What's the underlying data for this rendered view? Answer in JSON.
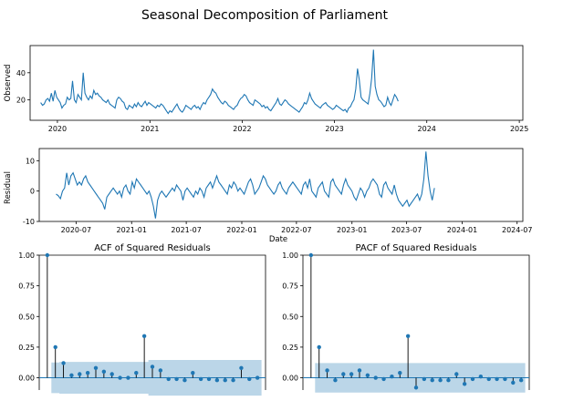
{
  "figure_title": "Seasonal Decomposition of Parliament",
  "colors": {
    "line": "#1f77b4",
    "band": "#1f77b4",
    "axis": "#000000"
  },
  "chart_data": [
    {
      "type": "line",
      "id": "observed",
      "ylabel": "Observed",
      "xlabel": "",
      "xlim": [
        "2019-09-15",
        "2025-01-15"
      ],
      "ylim": [
        5,
        60
      ],
      "x_ticks": [
        "2020",
        "2021",
        "2022",
        "2023",
        "2024",
        "2025"
      ],
      "x_tick_dates": [
        "2020-01-01",
        "2021-01-01",
        "2022-01-01",
        "2023-01-01",
        "2024-01-01",
        "2025-01-01"
      ],
      "y_ticks": [
        20,
        40
      ],
      "x_start": "2019-10-27",
      "step_days": 7,
      "values": [
        18,
        16,
        17,
        20,
        21,
        19,
        25,
        19,
        27,
        22,
        20,
        18,
        14,
        16,
        17,
        22,
        20,
        21,
        34,
        20,
        18,
        24,
        22,
        20,
        40,
        25,
        22,
        20,
        23,
        21,
        27,
        24,
        25,
        23,
        22,
        20,
        19,
        18,
        20,
        17,
        16,
        15,
        14,
        20,
        22,
        21,
        19,
        18,
        14,
        13,
        16,
        15,
        14,
        17,
        15,
        18,
        16,
        15,
        17,
        19,
        16,
        18,
        17,
        16,
        15,
        14,
        16,
        15,
        17,
        16,
        14,
        12,
        10,
        12,
        11,
        13,
        15,
        17,
        14,
        12,
        11,
        13,
        16,
        15,
        14,
        13,
        15,
        16,
        14,
        15,
        13,
        16,
        18,
        17,
        20,
        22,
        24,
        28,
        26,
        25,
        22,
        20,
        18,
        17,
        19,
        18,
        16,
        15,
        14,
        13,
        15,
        16,
        19,
        21,
        22,
        24,
        23,
        20,
        18,
        17,
        16,
        20,
        19,
        18,
        17,
        15,
        16,
        14,
        15,
        13,
        12,
        14,
        16,
        18,
        21,
        17,
        16,
        18,
        20,
        19,
        17,
        16,
        15,
        14,
        13,
        12,
        11,
        13,
        15,
        18,
        17,
        20,
        25,
        21,
        19,
        17,
        16,
        15,
        14,
        16,
        17,
        18,
        16,
        15,
        14,
        13,
        14,
        16,
        15,
        14,
        13,
        12,
        13,
        11,
        14,
        15,
        18,
        20,
        28,
        43,
        35,
        22,
        20,
        19,
        18,
        17,
        25,
        36,
        57,
        30,
        24,
        20,
        19,
        17,
        15,
        16,
        22,
        18,
        16,
        20,
        24,
        22,
        19
      ]
    },
    {
      "type": "line",
      "id": "residual",
      "ylabel": "Residual",
      "xlabel": "Date",
      "xlim": [
        "2020-03-01",
        "2024-07-20"
      ],
      "ylim": [
        -10,
        14
      ],
      "x_ticks": [
        "2020-07",
        "2021-01",
        "2021-07",
        "2022-01",
        "2022-07",
        "2023-01",
        "2023-07",
        "2024-01",
        "2024-07"
      ],
      "x_tick_dates": [
        "2020-07-01",
        "2021-01-01",
        "2021-07-01",
        "2022-01-01",
        "2022-07-01",
        "2023-01-01",
        "2023-07-01",
        "2024-01-01",
        "2024-07-01"
      ],
      "y_ticks": [
        -10,
        0,
        10
      ],
      "x_start": "2020-04-26",
      "step_days": 7,
      "values": [
        -1,
        -1.5,
        -2.5,
        0,
        1,
        6,
        2,
        5,
        6,
        4,
        2,
        3,
        2,
        4,
        5,
        3,
        2,
        1,
        0,
        -1,
        -2,
        -3,
        -4,
        -6,
        -2,
        -1,
        0,
        1,
        0,
        -1,
        0,
        -2,
        1,
        2,
        0,
        -1,
        3,
        1,
        4,
        3,
        2,
        1,
        0,
        -1,
        0,
        -2,
        -5,
        -9,
        -3,
        -1,
        0,
        -1,
        -2,
        -1,
        0,
        1,
        0,
        2,
        1,
        0,
        -3,
        0,
        1,
        0,
        -1,
        -2,
        0,
        -1,
        1,
        0,
        -2,
        1,
        2,
        3,
        1,
        3,
        5,
        3,
        2,
        1,
        0,
        -1,
        2,
        1,
        3,
        2,
        0,
        1,
        0,
        -1,
        1,
        3,
        4,
        2,
        -1,
        0,
        1,
        3,
        5,
        4,
        2,
        1,
        0,
        -1,
        0,
        2,
        3,
        1,
        0,
        -1,
        1,
        2,
        3,
        2,
        1,
        0,
        -1,
        2,
        3,
        1,
        4,
        0,
        -1,
        -2,
        1,
        2,
        3,
        0,
        -1,
        -2,
        3,
        4,
        2,
        1,
        0,
        -1,
        2,
        4,
        2,
        1,
        0,
        -2,
        -3,
        -1,
        1,
        0,
        -2,
        0,
        1,
        3,
        4,
        3,
        2,
        -1,
        -2,
        2,
        3,
        1,
        0,
        -1,
        2,
        -1,
        -3,
        -4,
        -5,
        -4,
        -3,
        -5,
        -4,
        -3,
        -2,
        -1,
        -3,
        -1,
        4,
        13,
        5,
        0,
        -3,
        1
      ]
    },
    {
      "type": "bar",
      "id": "acf",
      "title": "ACF of Squared Residuals",
      "ylim": [
        -0.1,
        1.0
      ],
      "y_ticks": [
        "0.00",
        "0.25",
        "0.50",
        "0.75",
        "1.00"
      ],
      "lags": [
        0,
        1,
        2,
        3,
        4,
        5,
        6,
        7,
        8,
        9,
        10,
        11,
        12,
        13,
        14,
        15,
        16,
        17,
        18,
        19,
        20,
        21,
        22,
        23,
        24,
        25,
        26
      ],
      "values": [
        1.0,
        0.25,
        0.12,
        0.02,
        0.03,
        0.04,
        0.08,
        0.05,
        0.03,
        0.0,
        0.0,
        0.04,
        0.34,
        0.09,
        0.06,
        -0.01,
        -0.01,
        -0.02,
        0.04,
        -0.01,
        -0.01,
        -0.02,
        -0.02,
        -0.02,
        0.08,
        -0.01,
        0.0
      ],
      "confint": [
        0,
        0.125,
        0.13,
        0.13,
        0.13,
        0.13,
        0.13,
        0.13,
        0.13,
        0.13,
        0.13,
        0.13,
        0.13,
        0.145,
        0.145,
        0.145,
        0.145,
        0.145,
        0.145,
        0.145,
        0.145,
        0.145,
        0.145,
        0.145,
        0.145,
        0.145,
        0.145
      ]
    },
    {
      "type": "bar",
      "id": "pacf",
      "title": "PACF of Squared Residuals",
      "ylim": [
        -0.1,
        1.0
      ],
      "y_ticks": [
        "0.00",
        "0.25",
        "0.50",
        "0.75",
        "1.00"
      ],
      "lags": [
        0,
        1,
        2,
        3,
        4,
        5,
        6,
        7,
        8,
        9,
        10,
        11,
        12,
        13,
        14,
        15,
        16,
        17,
        18,
        19,
        20,
        21,
        22,
        23,
        24,
        25,
        26
      ],
      "values": [
        1.0,
        0.25,
        0.06,
        -0.02,
        0.03,
        0.03,
        0.06,
        0.02,
        0.0,
        -0.01,
        0.01,
        0.04,
        0.34,
        -0.08,
        -0.01,
        -0.02,
        -0.02,
        -0.02,
        0.03,
        -0.05,
        -0.01,
        0.01,
        -0.01,
        -0.01,
        -0.01,
        -0.04,
        -0.02
      ],
      "confint": [
        0,
        0.12,
        0.12,
        0.12,
        0.12,
        0.12,
        0.12,
        0.12,
        0.12,
        0.12,
        0.12,
        0.12,
        0.12,
        0.12,
        0.12,
        0.12,
        0.12,
        0.12,
        0.12,
        0.12,
        0.12,
        0.12,
        0.12,
        0.12,
        0.12,
        0.12,
        0.12
      ]
    }
  ]
}
